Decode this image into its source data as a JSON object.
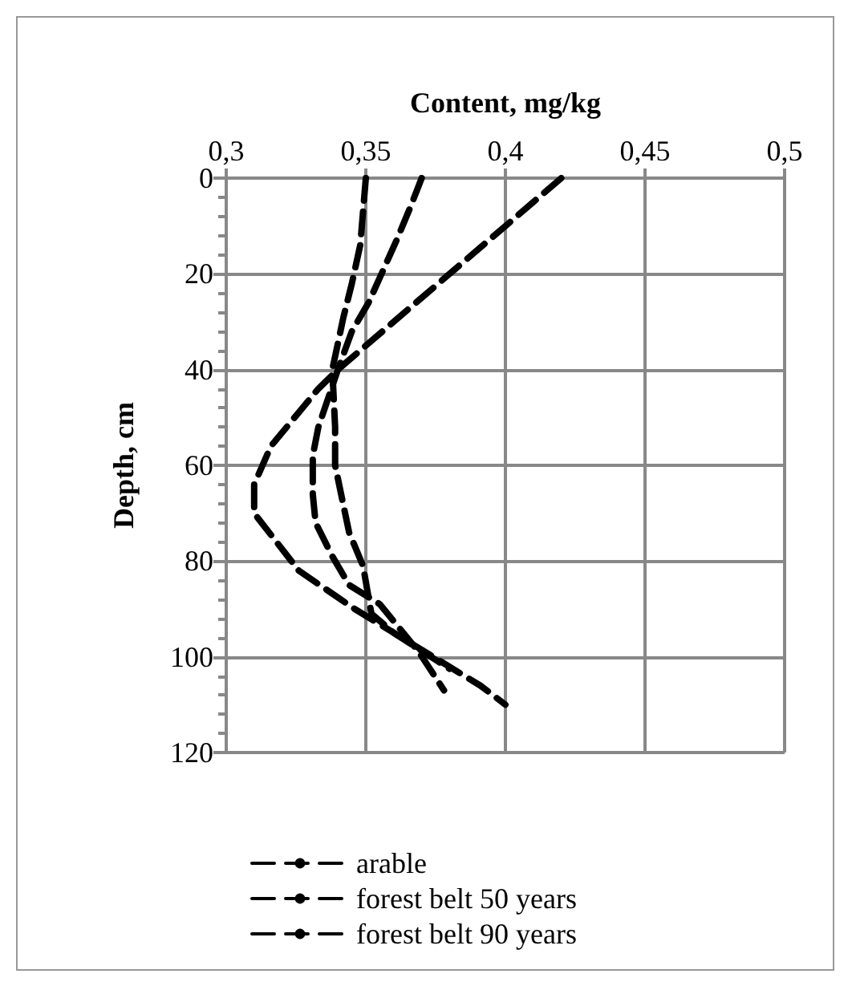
{
  "chart_data": {
    "type": "line",
    "xlabel": "Content, mg/kg",
    "ylabel": "Depth, cm",
    "xlim": [
      0.3,
      0.5
    ],
    "xticks": [
      {
        "value": 0.3,
        "label": "0,3"
      },
      {
        "value": 0.35,
        "label": "0,35"
      },
      {
        "value": 0.4,
        "label": "0,4"
      },
      {
        "value": 0.45,
        "label": "0,45"
      },
      {
        "value": 0.5,
        "label": "0,5"
      }
    ],
    "ylim": [
      120,
      0
    ],
    "yticks": [
      0,
      20,
      40,
      60,
      80,
      100,
      120
    ],
    "grid": true,
    "legend": "bottom",
    "marker": "none",
    "line_style": "dashed",
    "series": [
      {
        "name": "arable",
        "color": "#000000",
        "x": [
          0.35,
          0.348,
          0.345,
          0.342,
          0.338,
          0.339,
          0.339,
          0.344,
          0.349,
          0.352,
          0.36,
          0.38
        ],
        "values": [
          0,
          14,
          22,
          29,
          40,
          52,
          60,
          74,
          81,
          91,
          95,
          102.5
        ]
      },
      {
        "name": "forest belt 50 years",
        "color": "#000000",
        "x": [
          0.37,
          0.366,
          0.361,
          0.356,
          0.351,
          0.345,
          0.34,
          0.333,
          0.331,
          0.331,
          0.332,
          0.338,
          0.344,
          0.355,
          0.369,
          0.378
        ],
        "values": [
          0,
          6,
          13,
          19.5,
          26,
          32,
          40,
          52,
          58,
          66,
          72,
          79,
          85,
          89,
          99,
          107
        ]
      },
      {
        "name": "forest belt 90 years",
        "color": "#000000",
        "x": [
          0.42,
          0.4,
          0.38,
          0.36,
          0.34,
          0.333,
          0.316,
          0.31,
          0.31,
          0.318,
          0.326,
          0.346,
          0.391,
          0.4
        ],
        "values": [
          0,
          10,
          20,
          30,
          40,
          44,
          56,
          64,
          70,
          76,
          82,
          90,
          106,
          110
        ]
      }
    ]
  }
}
